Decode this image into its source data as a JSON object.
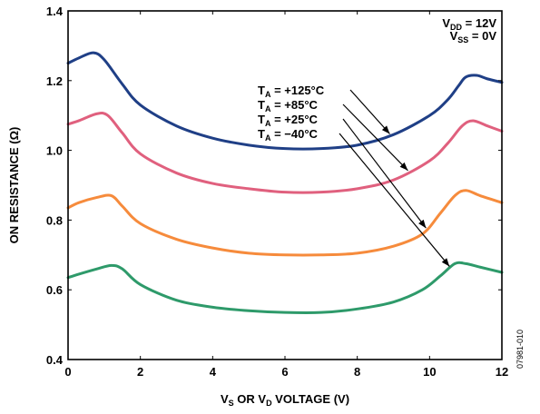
{
  "chart_data": {
    "type": "line",
    "xlabel": {
      "main": "V",
      "sub1": "S",
      "mid": " OR V",
      "sub2": "D",
      "end": " VOLTAGE (V)"
    },
    "ylabel": "ON RESISTANCE (Ω)",
    "xlim": [
      0,
      12
    ],
    "ylim": [
      0.4,
      1.4
    ],
    "x_ticks": [
      "0",
      "2",
      "4",
      "6",
      "8",
      "10",
      "12"
    ],
    "y_ticks": [
      "0.4",
      "0.6",
      "0.8",
      "1.0",
      "1.2",
      "1.4"
    ],
    "grid": false,
    "conditions": [
      {
        "main": "V",
        "sub": "DD",
        "value": " = 12V"
      },
      {
        "main": "V",
        "sub": "SS",
        "value": " = 0V"
      }
    ],
    "series": [
      {
        "name": "+125°C",
        "label_main": "T",
        "label_sub": "A",
        "label_value": " = +125°C",
        "color": "#1f3f86",
        "x": [
          0,
          0.3,
          0.7,
          1.0,
          1.5,
          2,
          3,
          4,
          5,
          6,
          7,
          8,
          9,
          10,
          10.5,
          10.8,
          11,
          11.3,
          11.6,
          12
        ],
        "y": [
          1.25,
          1.265,
          1.28,
          1.26,
          1.19,
          1.13,
          1.07,
          1.035,
          1.015,
          1.005,
          1.005,
          1.015,
          1.045,
          1.1,
          1.145,
          1.185,
          1.21,
          1.215,
          1.205,
          1.195
        ]
      },
      {
        "name": "+85°C",
        "label_main": "T",
        "label_sub": "A",
        "label_value": " = +85°C",
        "color": "#e0607e",
        "x": [
          0,
          0.3,
          0.8,
          1.1,
          1.5,
          2,
          3,
          4,
          5,
          6,
          7,
          8,
          9,
          10,
          10.5,
          10.9,
          11.2,
          11.6,
          12
        ],
        "y": [
          1.075,
          1.085,
          1.105,
          1.1,
          1.05,
          0.99,
          0.935,
          0.905,
          0.89,
          0.88,
          0.88,
          0.89,
          0.915,
          0.97,
          1.02,
          1.07,
          1.085,
          1.07,
          1.055
        ]
      },
      {
        "name": "+25°C",
        "label_main": "T",
        "label_sub": "A",
        "label_value": " = +25°C",
        "color": "#f68b3c",
        "x": [
          0,
          0.3,
          0.8,
          1.2,
          1.5,
          2,
          3,
          4,
          5,
          6,
          7,
          8,
          9,
          9.8,
          10.3,
          10.7,
          11,
          11.4,
          12
        ],
        "y": [
          0.835,
          0.85,
          0.865,
          0.87,
          0.84,
          0.79,
          0.745,
          0.72,
          0.705,
          0.7,
          0.7,
          0.705,
          0.725,
          0.76,
          0.82,
          0.87,
          0.885,
          0.87,
          0.85
        ]
      },
      {
        "name": "−40°C",
        "label_main": "T",
        "label_sub": "A",
        "label_value": " = −40°C",
        "color": "#2e9a6a",
        "x": [
          0,
          0.3,
          0.8,
          1.2,
          1.5,
          2,
          3,
          4,
          5,
          6,
          7,
          8,
          9,
          9.8,
          10.3,
          10.7,
          11,
          11.4,
          12
        ],
        "y": [
          0.635,
          0.645,
          0.66,
          0.67,
          0.66,
          0.615,
          0.57,
          0.55,
          0.54,
          0.535,
          0.535,
          0.545,
          0.565,
          0.6,
          0.64,
          0.675,
          0.675,
          0.665,
          0.65
        ]
      }
    ],
    "figure_code": "07981-010"
  }
}
